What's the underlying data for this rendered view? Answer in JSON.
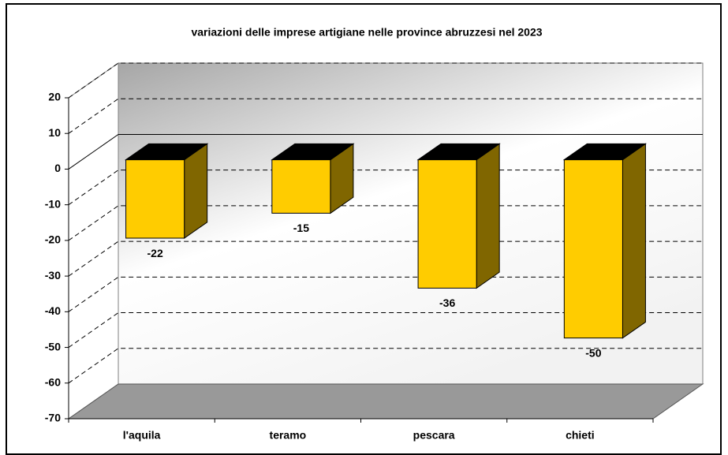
{
  "chart_data": {
    "type": "bar3d",
    "title": "variazioni delle imprese artigiane nelle province abruzzesi nel 2023",
    "categories": [
      "l'aquila",
      "teramo",
      "pescara",
      "chieti"
    ],
    "values": [
      -22,
      -15,
      -36,
      -50
    ],
    "color": "#ffcc00",
    "ylim": [
      -70,
      20
    ],
    "yticks": [
      -70,
      -60,
      -50,
      -40,
      -30,
      -20,
      -10,
      0,
      10,
      20
    ],
    "grid": true
  }
}
